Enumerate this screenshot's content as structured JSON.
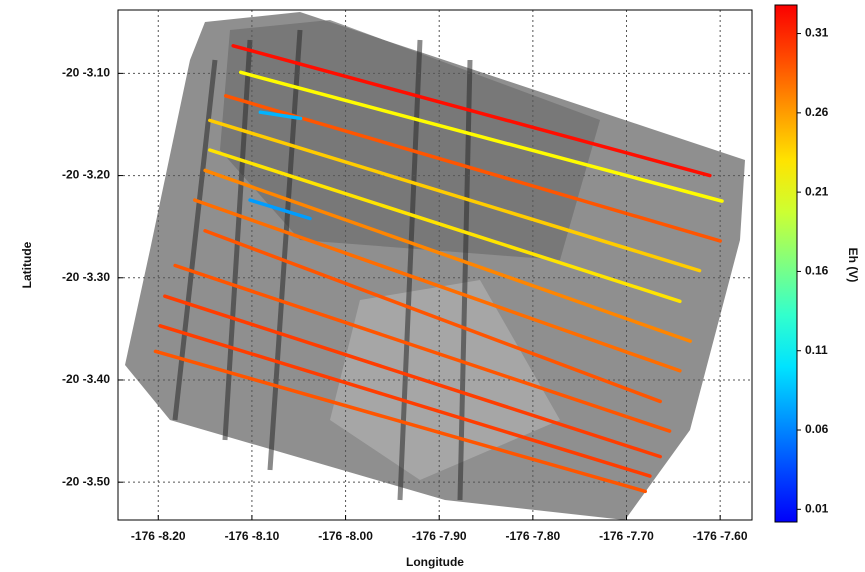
{
  "chart_data": {
    "type": "track",
    "xlabel": "Longitude",
    "ylabel": "Latitude",
    "colorbar_label": "Eh (V)",
    "xlim": [
      -8.243,
      -7.566
    ],
    "ylim": [
      -3.537,
      -3.038
    ],
    "xticks": [
      {
        "value": -8.2,
        "label": "-176 -8.20"
      },
      {
        "value": -8.1,
        "label": "-176 -8.10"
      },
      {
        "value": -8.0,
        "label": "-176 -8.00"
      },
      {
        "value": -7.9,
        "label": "-176 -7.90"
      },
      {
        "value": -7.8,
        "label": "-176 -7.80"
      },
      {
        "value": -7.7,
        "label": "-176 -7.70"
      },
      {
        "value": -7.6,
        "label": "-176 -7.60"
      }
    ],
    "yticks": [
      {
        "value": -3.1,
        "label": "-20 -3.10"
      },
      {
        "value": -3.2,
        "label": "-20 -3.20"
      },
      {
        "value": -3.3,
        "label": "-20 -3.30"
      },
      {
        "value": -3.4,
        "label": "-20 -3.40"
      },
      {
        "value": -3.5,
        "label": "-20 -3.50"
      }
    ],
    "grid": true,
    "colormap": "jet",
    "clim": [
      0.002,
      0.328
    ],
    "cticks": [
      0.31,
      0.26,
      0.21,
      0.16,
      0.11,
      0.06,
      0.01
    ],
    "tracks": [
      {
        "x": [
          -8.12,
          -7.611
        ],
        "y": [
          -3.073,
          -3.2
        ],
        "eh": 0.32
      },
      {
        "x": [
          -8.112,
          -7.598
        ],
        "y": [
          -3.099,
          -3.225
        ],
        "eh": 0.22
      },
      {
        "x": [
          -8.128,
          -7.6
        ],
        "y": [
          -3.122,
          -3.264
        ],
        "eh": 0.29
      },
      {
        "x": [
          -8.145,
          -7.622
        ],
        "y": [
          -3.146,
          -3.293
        ],
        "eh": 0.24
      },
      {
        "x": [
          -8.145,
          -7.643
        ],
        "y": [
          -3.175,
          -3.323
        ],
        "eh": 0.23
      },
      {
        "x": [
          -8.15,
          -7.632
        ],
        "y": [
          -3.195,
          -3.362
        ],
        "eh": 0.27
      },
      {
        "x": [
          -8.161,
          -7.643
        ],
        "y": [
          -3.224,
          -3.391
        ],
        "eh": 0.28
      },
      {
        "x": [
          -8.15,
          -7.664
        ],
        "y": [
          -3.254,
          -3.421
        ],
        "eh": 0.29
      },
      {
        "x": [
          -8.182,
          -7.654
        ],
        "y": [
          -3.288,
          -3.45
        ],
        "eh": 0.29
      },
      {
        "x": [
          -8.193,
          -7.664
        ],
        "y": [
          -3.318,
          -3.475
        ],
        "eh": 0.3
      },
      {
        "x": [
          -8.198,
          -7.675
        ],
        "y": [
          -3.347,
          -3.494
        ],
        "eh": 0.3
      },
      {
        "x": [
          -8.203,
          -7.68
        ],
        "y": [
          -3.372,
          -3.509
        ],
        "eh": 0.29
      },
      {
        "x": [
          -8.102,
          -8.038
        ],
        "y": [
          -3.224,
          -3.242
        ],
        "eh": 0.07
      },
      {
        "x": [
          -8.091,
          -8.048
        ],
        "y": [
          -3.138,
          -3.144
        ],
        "eh": 0.08
      }
    ]
  }
}
